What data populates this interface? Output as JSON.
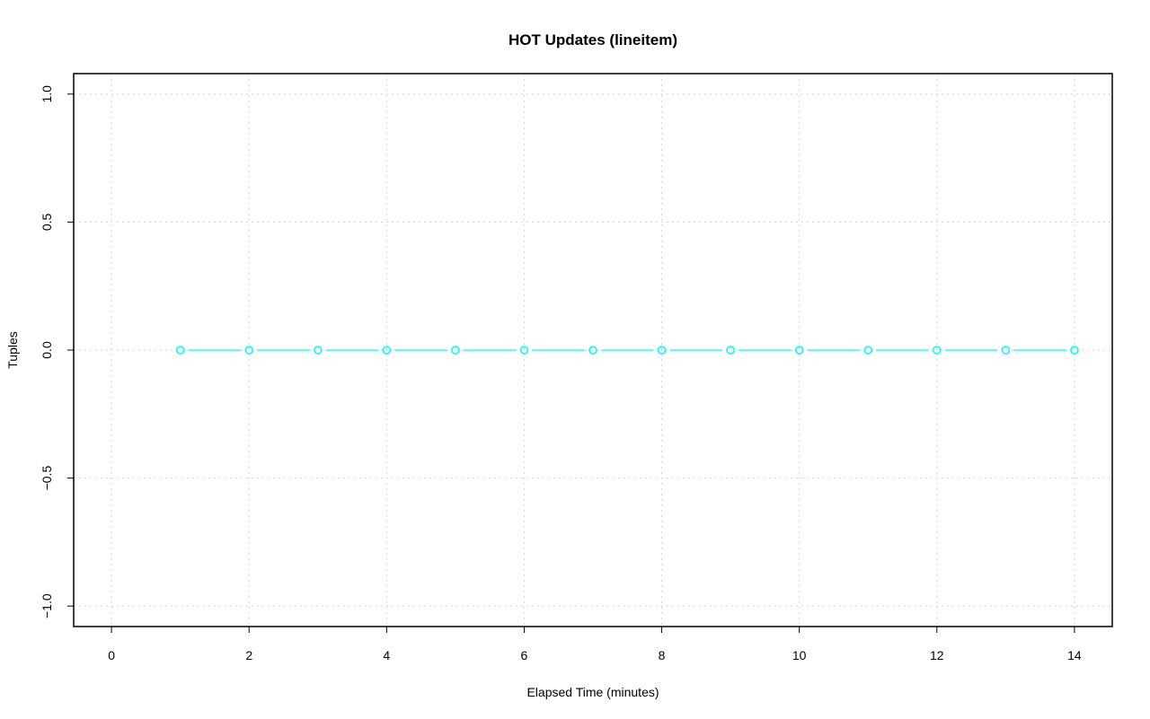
{
  "chart_data": {
    "type": "line",
    "title": "HOT Updates (lineitem)",
    "xlabel": "Elapsed Time (minutes)",
    "ylabel": "Tuples",
    "xlim": [
      -0.55,
      14.55
    ],
    "ylim": [
      -1.08,
      1.08
    ],
    "xticks": [
      0,
      2,
      4,
      6,
      8,
      10,
      12,
      14
    ],
    "xtick_labels": [
      "0",
      "2",
      "4",
      "6",
      "8",
      "10",
      "12",
      "14"
    ],
    "yticks": [
      -1.0,
      -0.5,
      0.0,
      0.5,
      1.0
    ],
    "ytick_labels": [
      "−1.0",
      "−0.5",
      "0.0",
      "0.5",
      "1.0"
    ],
    "grid": true,
    "series": [
      {
        "color": "#00ffff",
        "marker": "open-circle",
        "x": [
          1,
          2,
          3,
          4,
          5,
          6,
          7,
          8,
          9,
          10,
          11,
          12,
          13,
          14
        ],
        "y": [
          0,
          0,
          0,
          0,
          0,
          0,
          0,
          0,
          0,
          0,
          0,
          0,
          0,
          0
        ]
      }
    ]
  }
}
